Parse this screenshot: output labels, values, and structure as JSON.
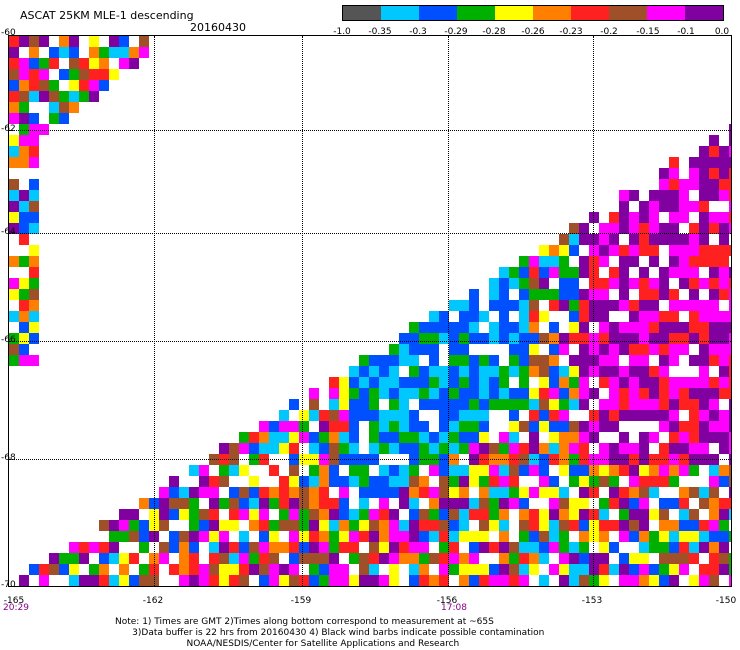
{
  "header": {
    "title": "ASCAT 25KM MLE-1 descending",
    "date": "20160430"
  },
  "colorbar": {
    "colors": [
      "#555555",
      "#00c8ff",
      "#0050ff",
      "#00b000",
      "#ffff00",
      "#ff8000",
      "#ff2020",
      "#a05028",
      "#ff00ff",
      "#8000a0"
    ],
    "ticks": [
      "-1.0",
      "-0.35",
      "-0.3",
      "-0.29",
      "-0.28",
      "-0.26",
      "-0.23",
      "-0.2",
      "-0.15",
      "-0.1",
      "0.0"
    ]
  },
  "map": {
    "lat_labels": [
      "-60",
      "-62",
      "-64",
      "-66",
      "-68",
      "-70"
    ],
    "lon_labels": [
      "-165",
      "-162",
      "-159",
      "-156",
      "-153",
      "-150"
    ],
    "time_labels": [
      "20:29",
      "17:08"
    ]
  },
  "notes": [
    "Note: 1) Times are GMT 2)Times along bottom correspond to measurement at ~65S",
    "      3)Data buffer is 22 hrs from 20160430 4) Black wind barbs indicate possible contamination",
    "                         NOAA/NESDIS/Center for Satellite Applications and Research"
  ]
}
